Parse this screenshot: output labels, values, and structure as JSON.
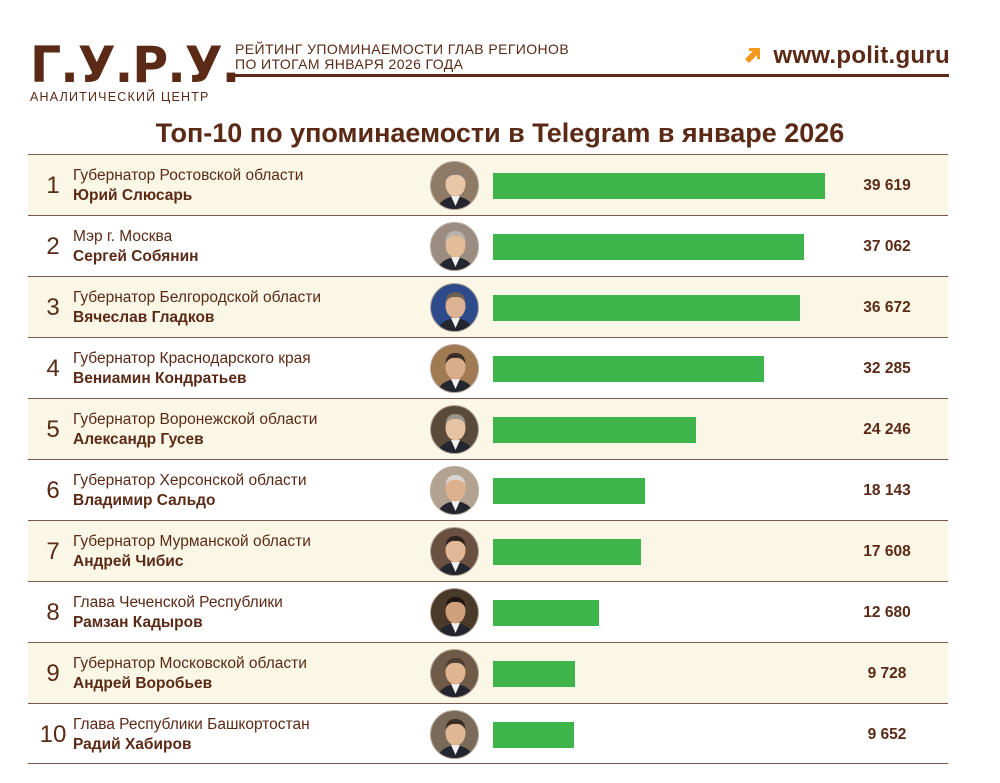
{
  "header": {
    "logo_text": "Г.У.Р.У.",
    "logo_subtitle": "АНАЛИТИЧЕСКИЙ ЦЕНТР",
    "subtitle_line1": "РЕЙТИНГ УПОМИНАЕМОСТИ ГЛАВ РЕГИОНОВ",
    "subtitle_line2": "ПО ИТОГАМ ЯНВАРЯ 2026 ГОДА",
    "site_url": "www.polit.guru"
  },
  "colors": {
    "brown": "#5a2a16",
    "bar": "#3db54a",
    "arrow": "#f39a1e",
    "row_alt": "#fbf7e6"
  },
  "chart_data": {
    "type": "bar",
    "title": "Топ-10 по упоминаемости в Telegram в январе 2026",
    "orientation": "horizontal",
    "xlabel": "",
    "ylabel": "",
    "xlim": [
      0,
      39619
    ],
    "categories": [
      "Юрий Слюсарь",
      "Сергей Собянин",
      "Вячеслав Гладков",
      "Вениамин Кондратьев",
      "Александр Гусев",
      "Владимир Сальдо",
      "Андрей Чибис",
      "Рамзан Кадыров",
      "Андрей Воробьев",
      "Радий Хабиров"
    ],
    "values": [
      39619,
      37062,
      36672,
      32285,
      24246,
      18143,
      17608,
      12680,
      9728,
      9652
    ],
    "rows": [
      {
        "rank": "1",
        "post": "Губернатор Ростовской области",
        "name": "Юрий Слюсарь",
        "value": 39619,
        "value_label": "39 619"
      },
      {
        "rank": "2",
        "post": "Мэр г. Москва",
        "name": "Сергей Собянин",
        "value": 37062,
        "value_label": "37 062"
      },
      {
        "rank": "3",
        "post": "Губернатор Белгородской области",
        "name": "Вячеслав Гладков",
        "value": 36672,
        "value_label": "36 672"
      },
      {
        "rank": "4",
        "post": "Губернатор Краснодарского края",
        "name": "Вениамин Кондратьев",
        "value": 32285,
        "value_label": "32 285"
      },
      {
        "rank": "5",
        "post": "Губернатор Воронежской области",
        "name": "Александр Гусев",
        "value": 24246,
        "value_label": "24 246"
      },
      {
        "rank": "6",
        "post": "Губернатор Херсонской области",
        "name": "Владимир Сальдо",
        "value": 18143,
        "value_label": "18 143"
      },
      {
        "rank": "7",
        "post": "Губернатор Мурманской области",
        "name": "Андрей Чибис",
        "value": 17608,
        "value_label": "17 608"
      },
      {
        "rank": "8",
        "post": "Глава Чеченской Республики",
        "name": "Рамзан Кадыров",
        "value": 12680,
        "value_label": "12 680"
      },
      {
        "rank": "9",
        "post": "Губернатор Московской области",
        "name": "Андрей Воробьев",
        "value": 9728,
        "value_label": "9 728"
      },
      {
        "rank": "10",
        "post": "Глава Республики Башкортостан",
        "name": "Радий Хабиров",
        "value": 9652,
        "value_label": "9 652"
      }
    ]
  }
}
